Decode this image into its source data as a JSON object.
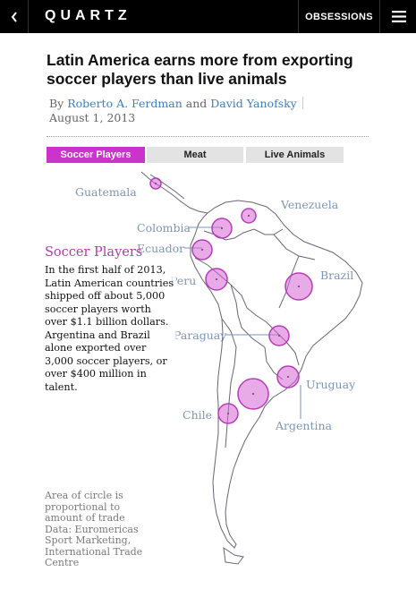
{
  "header": {
    "logo": "QUARTZ",
    "obsessions_label": "OBSESSIONS"
  },
  "article": {
    "headline": "Latin America earns more from exporting soccer players than live animals",
    "by_prefix": "By",
    "author1": "Roberto A. Ferdman",
    "and_text": "and",
    "author2": "David Yanofsky",
    "date": "August 1, 2013"
  },
  "tabs": [
    {
      "label": "Soccer Players",
      "active": true
    },
    {
      "label": "Meat",
      "active": false
    },
    {
      "label": "Live Animals",
      "active": false
    }
  ],
  "panel": {
    "title": "Soccer Players",
    "text": "In the first half of 2013, Latin American countries shipped off about 5,000 soccer players worth over $1.1 billion dollars. Argentina and Brazil alone exported over 3,000 soccer players, or over $400 million in talent."
  },
  "countries": {
    "guatemala": "Guatemala",
    "venezuela": "Venezuela",
    "colombia": "Colombia",
    "ecuador": "Ecuador",
    "brazil": "Brazil",
    "peru": "Peru",
    "paraguay": "Paraguay",
    "uruguay": "Uruguay",
    "chile": "Chile",
    "argentina": "Argentina"
  },
  "footnote": "Area of circle is proportional to amount of trade Data: Euromericas Sport Marketing, International Trade Centre",
  "colors": {
    "accent": "#cc33cc",
    "bubble": "#d666d6",
    "label": "#7e96b4",
    "link": "#3b7fc4"
  }
}
